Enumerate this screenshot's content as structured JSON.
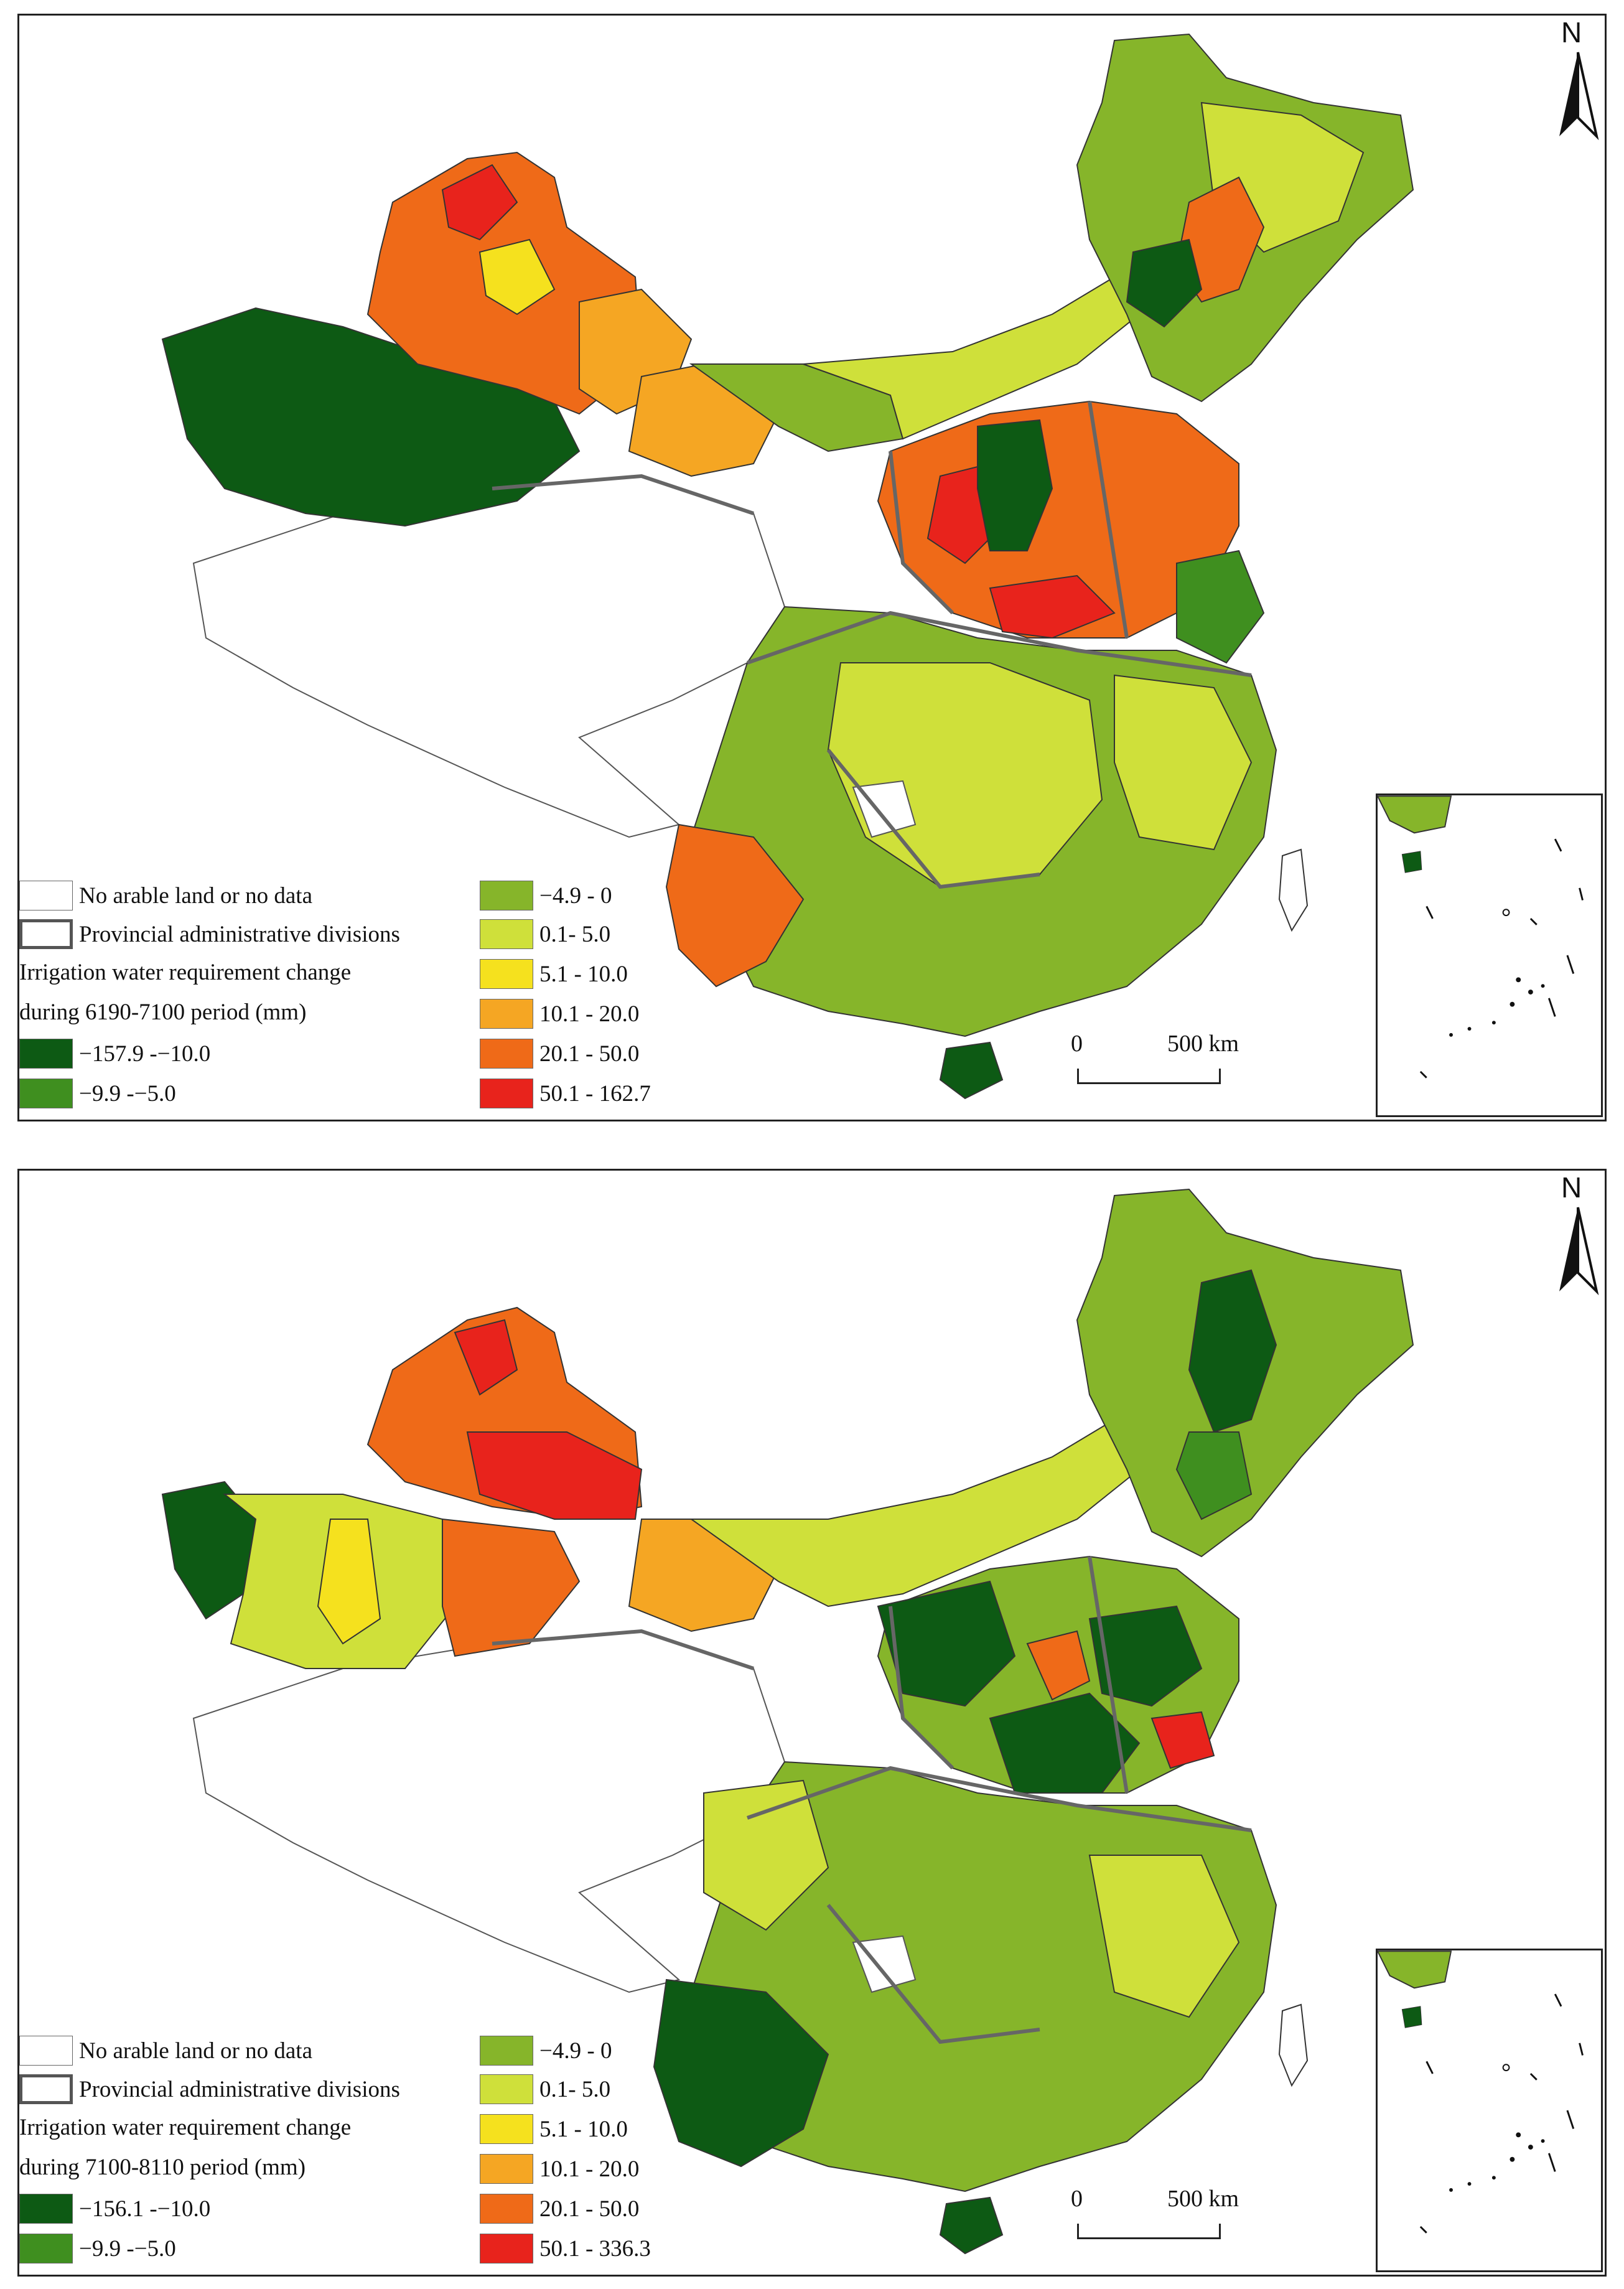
{
  "colors": {
    "c_neg10": "#0d5a14",
    "c_neg5": "#3f8f1f",
    "c_0": "#86b52a",
    "c_5": "#cfe03a",
    "c_10": "#f5e11e",
    "c_20": "#f5a623",
    "c_50": "#ef6a18",
    "c_max": "#e8231c",
    "nodata": "#ffffff",
    "border": "#555555"
  },
  "panels": [
    {
      "north": "N",
      "scale": {
        "start": "0",
        "end": "500 km"
      },
      "legend": {
        "nodata": "No arable land or no data",
        "province": "Provincial administrative divisions",
        "title_line1": "Irrigation water requirement change",
        "title_line2": "during 6190-7100 period (mm)",
        "classes": [
          {
            "label": "−157.9 -−10.0",
            "color": "#0d5a14"
          },
          {
            "label": "−9.9 -−5.0",
            "color": "#3f8f1f"
          },
          {
            "label": "−4.9 - 0",
            "color": "#86b52a"
          },
          {
            "label": "0.1- 5.0",
            "color": "#cfe03a"
          },
          {
            "label": "5.1 - 10.0",
            "color": "#f5e11e"
          },
          {
            "label": "10.1 - 20.0",
            "color": "#f5a623"
          },
          {
            "label": "20.1 - 50.0",
            "color": "#ef6a18"
          },
          {
            "label": "50.1 - 162.7",
            "color": "#e8231c"
          }
        ]
      }
    },
    {
      "north": "N",
      "scale": {
        "start": "0",
        "end": "500 km"
      },
      "legend": {
        "nodata": "No arable land or no data",
        "province": "Provincial administrative divisions",
        "title_line1": "Irrigation water requirement change",
        "title_line2": "during 7100-8110 period (mm)",
        "classes": [
          {
            "label": "−156.1 -−10.0",
            "color": "#0d5a14"
          },
          {
            "label": "−9.9 -−5.0",
            "color": "#3f8f1f"
          },
          {
            "label": "−4.9 - 0",
            "color": "#86b52a"
          },
          {
            "label": "0.1- 5.0",
            "color": "#cfe03a"
          },
          {
            "label": "5.1 - 10.0",
            "color": "#f5e11e"
          },
          {
            "label": "10.1 - 20.0",
            "color": "#f5a623"
          },
          {
            "label": "20.1 - 50.0",
            "color": "#ef6a18"
          },
          {
            "label": "50.1 - 336.3",
            "color": "#e8231c"
          }
        ]
      }
    }
  ]
}
